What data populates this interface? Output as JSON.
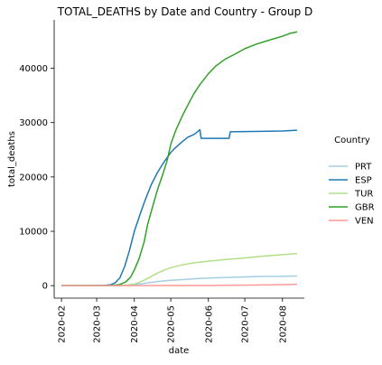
{
  "chart_data": {
    "type": "line",
    "title": "TOTAL_DEATHS by Date and Country - Group D",
    "xlabel": "date",
    "ylabel": "total_deaths",
    "x_ticks": [
      "2020-02",
      "2020-03",
      "2020-04",
      "2020-05",
      "2020-06",
      "2020-07",
      "2020-08"
    ],
    "y_ticks": [
      0,
      10000,
      20000,
      30000,
      40000
    ],
    "xlim": [
      "2020-01-26",
      "2020-08-19"
    ],
    "ylim": [
      -2300,
      48900
    ],
    "grid": false,
    "legend": {
      "title": "Country",
      "placement": "right"
    },
    "series": [
      {
        "name": "PRT",
        "color": "#a6cee3",
        "points": [
          [
            "2020-02-01",
            0
          ],
          [
            "2020-03-01",
            0
          ],
          [
            "2020-03-15",
            0
          ],
          [
            "2020-03-20",
            20
          ],
          [
            "2020-03-25",
            60
          ],
          [
            "2020-04-01",
            190
          ],
          [
            "2020-04-08",
            380
          ],
          [
            "2020-04-15",
            600
          ],
          [
            "2020-04-22",
            790
          ],
          [
            "2020-05-01",
            980
          ],
          [
            "2020-05-10",
            1110
          ],
          [
            "2020-05-20",
            1250
          ],
          [
            "2020-06-01",
            1400
          ],
          [
            "2020-06-15",
            1500
          ],
          [
            "2020-07-01",
            1600
          ],
          [
            "2020-07-15",
            1700
          ],
          [
            "2020-08-01",
            1740
          ],
          [
            "2020-08-13",
            1770
          ]
        ]
      },
      {
        "name": "ESP",
        "color": "#1f78b4",
        "points": [
          [
            "2020-02-01",
            0
          ],
          [
            "2020-03-01",
            0
          ],
          [
            "2020-03-08",
            50
          ],
          [
            "2020-03-13",
            200
          ],
          [
            "2020-03-16",
            500
          ],
          [
            "2020-03-20",
            1400
          ],
          [
            "2020-03-24",
            3500
          ],
          [
            "2020-03-28",
            6500
          ],
          [
            "2020-04-01",
            10000
          ],
          [
            "2020-04-06",
            13300
          ],
          [
            "2020-04-10",
            15800
          ],
          [
            "2020-04-15",
            18600
          ],
          [
            "2020-04-20",
            20800
          ],
          [
            "2020-04-25",
            22600
          ],
          [
            "2020-05-01",
            24500
          ],
          [
            "2020-05-05",
            25400
          ],
          [
            "2020-05-10",
            26400
          ],
          [
            "2020-05-15",
            27300
          ],
          [
            "2020-05-20",
            27800
          ],
          [
            "2020-05-23",
            28300
          ],
          [
            "2020-05-25",
            28700
          ],
          [
            "2020-05-26",
            27100
          ],
          [
            "2020-06-01",
            27100
          ],
          [
            "2020-06-10",
            27100
          ],
          [
            "2020-06-18",
            27100
          ],
          [
            "2020-06-19",
            28300
          ],
          [
            "2020-07-01",
            28350
          ],
          [
            "2020-07-15",
            28400
          ],
          [
            "2020-08-01",
            28450
          ],
          [
            "2020-08-13",
            28600
          ]
        ]
      },
      {
        "name": "TUR",
        "color": "#b2df8a",
        "points": [
          [
            "2020-02-01",
            0
          ],
          [
            "2020-03-01",
            0
          ],
          [
            "2020-03-15",
            0
          ],
          [
            "2020-03-20",
            10
          ],
          [
            "2020-03-25",
            80
          ],
          [
            "2020-04-01",
            300
          ],
          [
            "2020-04-05",
            600
          ],
          [
            "2020-04-10",
            1100
          ],
          [
            "2020-04-15",
            1700
          ],
          [
            "2020-04-20",
            2300
          ],
          [
            "2020-04-25",
            2800
          ],
          [
            "2020-05-01",
            3300
          ],
          [
            "2020-05-10",
            3800
          ],
          [
            "2020-05-20",
            4200
          ],
          [
            "2020-06-01",
            4500
          ],
          [
            "2020-06-15",
            4800
          ],
          [
            "2020-07-01",
            5100
          ],
          [
            "2020-07-15",
            5400
          ],
          [
            "2020-08-01",
            5700
          ],
          [
            "2020-08-13",
            5900
          ]
        ]
      },
      {
        "name": "GBR",
        "color": "#33a02c",
        "points": [
          [
            "2020-02-01",
            0
          ],
          [
            "2020-03-01",
            0
          ],
          [
            "2020-03-10",
            10
          ],
          [
            "2020-03-15",
            60
          ],
          [
            "2020-03-20",
            200
          ],
          [
            "2020-03-25",
            700
          ],
          [
            "2020-03-29",
            1600
          ],
          [
            "2020-04-01",
            2900
          ],
          [
            "2020-04-05",
            5000
          ],
          [
            "2020-04-09",
            8000
          ],
          [
            "2020-04-12",
            11300
          ],
          [
            "2020-04-16",
            14500
          ],
          [
            "2020-04-20",
            17600
          ],
          [
            "2020-04-24",
            20200
          ],
          [
            "2020-04-28",
            23000
          ],
          [
            "2020-05-01",
            26000
          ],
          [
            "2020-05-05",
            28500
          ],
          [
            "2020-05-10",
            31000
          ],
          [
            "2020-05-15",
            33200
          ],
          [
            "2020-05-20",
            35300
          ],
          [
            "2020-05-25",
            37000
          ],
          [
            "2020-06-01",
            39000
          ],
          [
            "2020-06-07",
            40400
          ],
          [
            "2020-06-15",
            41700
          ],
          [
            "2020-06-22",
            42500
          ],
          [
            "2020-07-01",
            43600
          ],
          [
            "2020-07-10",
            44400
          ],
          [
            "2020-07-20",
            45100
          ],
          [
            "2020-08-01",
            45900
          ],
          [
            "2020-08-07",
            46400
          ],
          [
            "2020-08-13",
            46700
          ]
        ]
      },
      {
        "name": "VEN",
        "color": "#fb9a99",
        "points": [
          [
            "2020-02-01",
            0
          ],
          [
            "2020-03-01",
            0
          ],
          [
            "2020-03-20",
            0
          ],
          [
            "2020-04-01",
            10
          ],
          [
            "2020-05-01",
            20
          ],
          [
            "2020-06-01",
            30
          ],
          [
            "2020-07-01",
            80
          ],
          [
            "2020-08-01",
            180
          ],
          [
            "2020-08-13",
            250
          ]
        ]
      }
    ]
  }
}
